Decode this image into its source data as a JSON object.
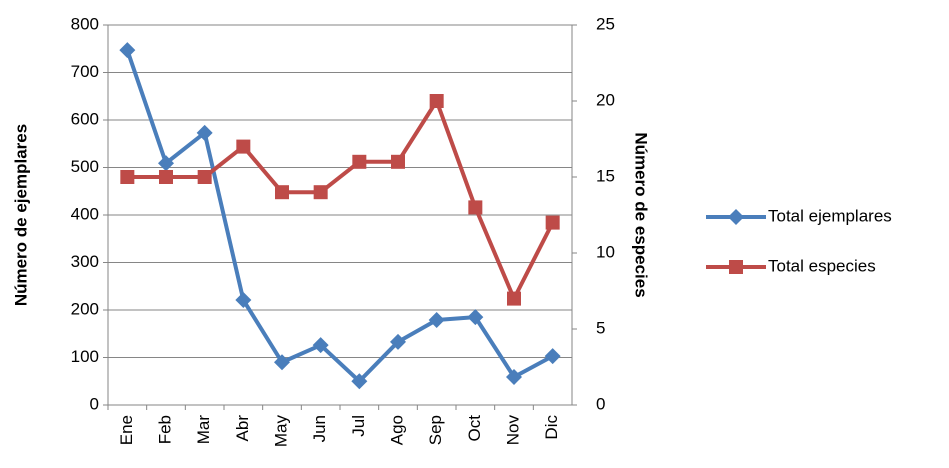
{
  "chart_data": {
    "type": "line",
    "categories": [
      "Ene",
      "Feb",
      "Mar",
      "Abr",
      "May",
      "Jun",
      "Jul",
      "Ago",
      "Sep",
      "Oct",
      "Nov",
      "Dic"
    ],
    "series": [
      {
        "name": "Total ejemplares",
        "color": "#4a7ebb",
        "marker": "diamond",
        "values": [
          747,
          509,
          573,
          221,
          90,
          126,
          50,
          133,
          179,
          185,
          59,
          103
        ]
      },
      {
        "name": "Total especies",
        "color": "#be4b48",
        "marker": "square",
        "axis": "y2",
        "values": [
          15,
          15,
          15,
          17,
          14,
          14,
          16,
          16,
          20,
          13,
          7,
          12
        ]
      }
    ],
    "ylabel": "Número de ejemplares",
    "y2label": "Número de especies",
    "ylim": [
      0,
      800
    ],
    "yticks": [
      0,
      100,
      200,
      300,
      400,
      500,
      600,
      700,
      800
    ],
    "y2lim": [
      0,
      25
    ],
    "y2ticks": [
      0,
      5,
      10,
      15,
      20,
      25
    ],
    "grid": true,
    "legend": "right"
  }
}
